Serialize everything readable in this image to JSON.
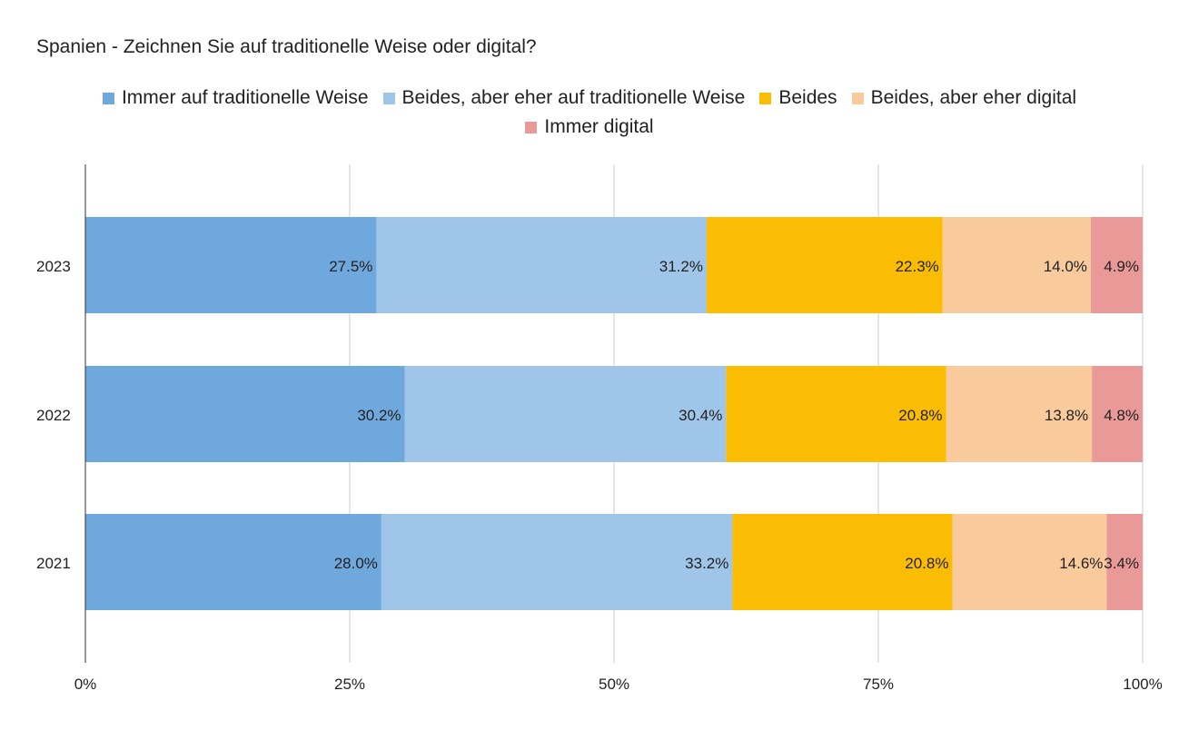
{
  "chart_data": {
    "type": "bar",
    "orientation": "horizontal",
    "stacked": "percent",
    "title": "Spanien - Zeichnen Sie auf traditionelle Weise oder digital?",
    "categories": [
      "2023",
      "2022",
      "2021"
    ],
    "series": [
      {
        "name": "Immer auf traditionelle Weise",
        "color": "#6fa8dc",
        "values": [
          27.5,
          30.2,
          28.0
        ],
        "labels": [
          "27.5%",
          "30.2%",
          "28.0%"
        ]
      },
      {
        "name": "Beides, aber eher auf traditionelle Weise",
        "color": "#9fc5e8",
        "values": [
          31.2,
          30.4,
          33.2
        ],
        "labels": [
          "31.2%",
          "30.4%",
          "33.2%"
        ]
      },
      {
        "name": "Beides",
        "color": "#fbbc04",
        "values": [
          22.3,
          20.8,
          20.8
        ],
        "labels": [
          "22.3%",
          "20.8%",
          "20.8%"
        ]
      },
      {
        "name": "Beides, aber eher digital",
        "color": "#f9cb9c",
        "values": [
          14.0,
          13.8,
          14.6
        ],
        "labels": [
          "14.0%",
          "13.8%",
          "14.6%"
        ]
      },
      {
        "name": "Immer digital",
        "color": "#ea9999",
        "values": [
          4.9,
          4.8,
          3.4
        ],
        "labels": [
          "4.9%",
          "4.8%",
          "3.4%"
        ]
      }
    ],
    "xlim": [
      0,
      100
    ],
    "xticks": [
      0,
      25,
      50,
      75,
      100
    ],
    "xtick_labels": [
      "0%",
      "25%",
      "50%",
      "75%",
      "100%"
    ],
    "grid": true,
    "legend_position": "top"
  }
}
